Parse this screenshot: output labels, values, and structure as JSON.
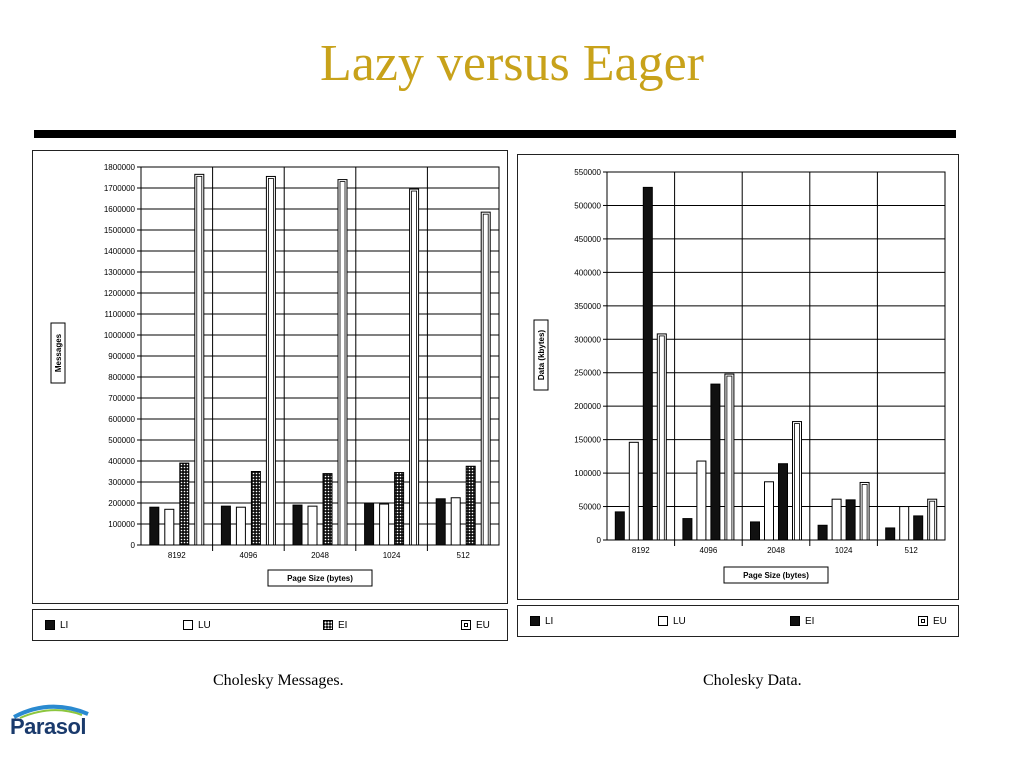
{
  "slide": {
    "title": "Lazy versus Eager",
    "logo_text": "Parasol"
  },
  "colors": {
    "title": "#c8a21a",
    "logo": "#1a3a6c"
  },
  "chart_data": [
    {
      "type": "bar",
      "caption": "Cholesky Messages.",
      "categories": [
        "8192",
        "4096",
        "2048",
        "1024",
        "512"
      ],
      "xlabel": "Page Size (bytes)",
      "ylabel": "Messages",
      "ylim": [
        0,
        1800000
      ],
      "yticks": [
        0,
        100000,
        200000,
        300000,
        400000,
        500000,
        600000,
        700000,
        800000,
        900000,
        1000000,
        1100000,
        1200000,
        1300000,
        1400000,
        1500000,
        1600000,
        1700000,
        1800000
      ],
      "grid": true,
      "legend_position": "bottom",
      "series": [
        {
          "name": "LI",
          "style": "solid",
          "values": [
            180000,
            185000,
            190000,
            200000,
            220000
          ]
        },
        {
          "name": "LU",
          "style": "open",
          "values": [
            170000,
            180000,
            185000,
            195000,
            225000
          ]
        },
        {
          "name": "EI",
          "style": "dotted",
          "values": [
            390000,
            350000,
            340000,
            345000,
            375000
          ]
        },
        {
          "name": "EU",
          "style": "double",
          "values": [
            1765000,
            1755000,
            1740000,
            1695000,
            1585000
          ]
        }
      ]
    },
    {
      "type": "bar",
      "caption": "Cholesky Data.",
      "categories": [
        "8192",
        "4096",
        "2048",
        "1024",
        "512"
      ],
      "xlabel": "Page Size (bytes)",
      "ylabel": "Data (kbytes)",
      "ylim": [
        0,
        550000
      ],
      "yticks": [
        0,
        50000,
        100000,
        150000,
        200000,
        250000,
        300000,
        350000,
        400000,
        450000,
        500000,
        550000
      ],
      "grid": true,
      "legend_position": "bottom",
      "series": [
        {
          "name": "LI",
          "style": "solid",
          "values": [
            42000,
            32000,
            27000,
            22000,
            18000
          ]
        },
        {
          "name": "LU",
          "style": "open",
          "values": [
            146000,
            118000,
            87000,
            61000,
            50000
          ]
        },
        {
          "name": "EI",
          "style": "solid",
          "values": [
            527000,
            233000,
            114000,
            60000,
            36000
          ]
        },
        {
          "name": "EU",
          "style": "double",
          "values": [
            308000,
            248000,
            177000,
            86000,
            61000
          ]
        }
      ]
    }
  ]
}
